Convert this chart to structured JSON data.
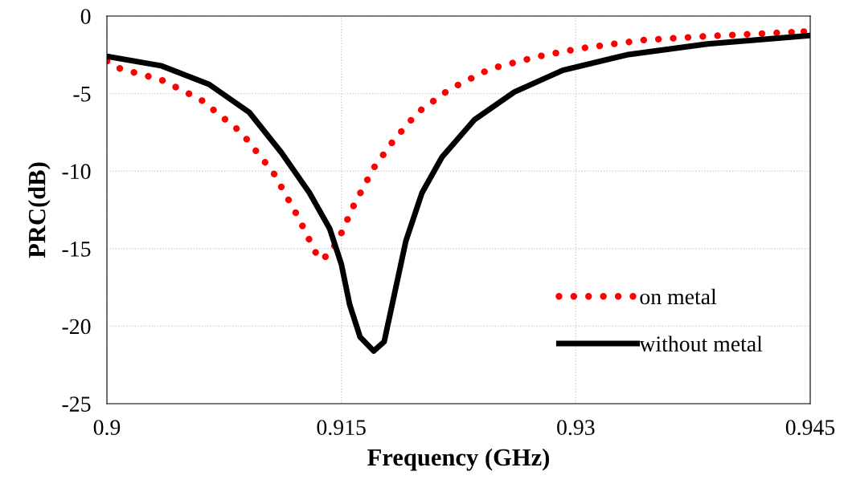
{
  "chart_data": {
    "type": "line",
    "xlabel": "Frequency (GHz)",
    "ylabel": "PRC(dB)",
    "xlim": [
      0.9,
      0.945
    ],
    "xticks": [
      0.9,
      0.915,
      0.93,
      0.945
    ],
    "ylim": [
      -25,
      0
    ],
    "yticks": [
      -25,
      -20,
      -15,
      -10,
      -5,
      0
    ],
    "grid": true,
    "legend": "bottom right",
    "series": [
      {
        "name": "on metal",
        "color": "#ff0000",
        "line_style": "dotted",
        "x": [
          0.9,
          0.90087,
          0.90345,
          0.90602,
          0.90859,
          0.91065,
          0.9122,
          0.91358,
          0.91425,
          0.915,
          0.9158,
          0.91707,
          0.91836,
          0.9199,
          0.92196,
          0.92453,
          0.92762,
          0.93019,
          0.9343,
          0.93842,
          0.94459
        ],
        "values": [
          -2.9,
          -3.4,
          -4.1,
          -5.4,
          -7.5,
          -10.1,
          -12.9,
          -15.7,
          -15.4,
          -14.0,
          -12.2,
          -9.8,
          -8.0,
          -6.2,
          -4.7,
          -3.4,
          -2.6,
          -2.1,
          -1.55,
          -1.3,
          -1.0
        ]
      },
      {
        "name": "without metal",
        "color": "#000000",
        "line_style": "solid",
        "x": [
          0.9,
          0.90345,
          0.90653,
          0.9091,
          0.91116,
          0.91296,
          0.91425,
          0.915,
          0.91553,
          0.9162,
          0.91707,
          0.91774,
          0.91836,
          0.91913,
          0.92016,
          0.92144,
          0.9235,
          0.92607,
          0.92916,
          0.93327,
          0.93842,
          0.945
        ],
        "values": [
          -2.6,
          -3.2,
          -4.4,
          -6.2,
          -8.8,
          -11.4,
          -13.7,
          -16.0,
          -18.6,
          -20.7,
          -21.6,
          -21.0,
          -18.1,
          -14.5,
          -11.4,
          -9.1,
          -6.7,
          -4.9,
          -3.5,
          -2.5,
          -1.8,
          -1.25
        ]
      }
    ]
  }
}
